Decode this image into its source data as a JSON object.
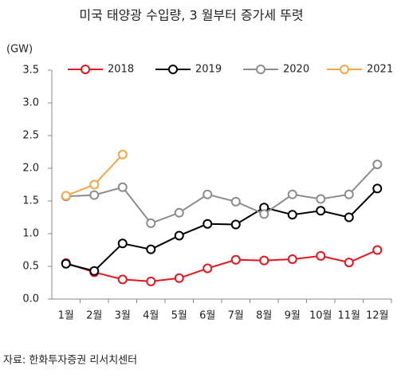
{
  "chart_data": {
    "type": "line",
    "title": "미국 태양광 수입량, 3 월부터 증가세 뚜렷",
    "y_label": "(GW)",
    "source": "자료: 한화투자증권 리서치센터",
    "categories": [
      "1월",
      "2월",
      "3월",
      "4월",
      "5월",
      "6월",
      "7월",
      "8월",
      "9월",
      "10월",
      "11월",
      "12월"
    ],
    "series": [
      {
        "name": "2018",
        "color": "#e8141e",
        "values": [
          0.55,
          0.41,
          0.3,
          0.27,
          0.32,
          0.47,
          0.6,
          0.59,
          0.61,
          0.66,
          0.56,
          0.75
        ]
      },
      {
        "name": "2019",
        "color": "#000000",
        "values": [
          0.54,
          0.43,
          0.85,
          0.76,
          0.97,
          1.15,
          1.14,
          1.4,
          1.29,
          1.35,
          1.25,
          1.69
        ]
      },
      {
        "name": "2020",
        "color": "#8c8c8c",
        "values": [
          1.57,
          1.59,
          1.71,
          1.16,
          1.32,
          1.6,
          1.49,
          1.3,
          1.6,
          1.53,
          1.6,
          2.06
        ]
      },
      {
        "name": "2021",
        "color": "#f5a54a",
        "values": [
          1.58,
          1.75,
          2.21,
          null,
          null,
          null,
          null,
          null,
          null,
          null,
          null,
          null
        ]
      }
    ],
    "ylim": [
      0,
      3.5
    ],
    "yticks": [
      {
        "value": 0,
        "label": "0.0"
      },
      {
        "value": 0.5,
        "label": "0.5"
      },
      {
        "value": 1,
        "label": "1.0"
      },
      {
        "value": 1.5,
        "label": "1.5"
      },
      {
        "value": 2,
        "label": "2.0"
      },
      {
        "value": 2.5,
        "label": "2.5"
      },
      {
        "value": 3,
        "label": "3.0"
      },
      {
        "value": 3.5,
        "label": "3.5"
      }
    ],
    "grid": false,
    "legend": "top"
  }
}
